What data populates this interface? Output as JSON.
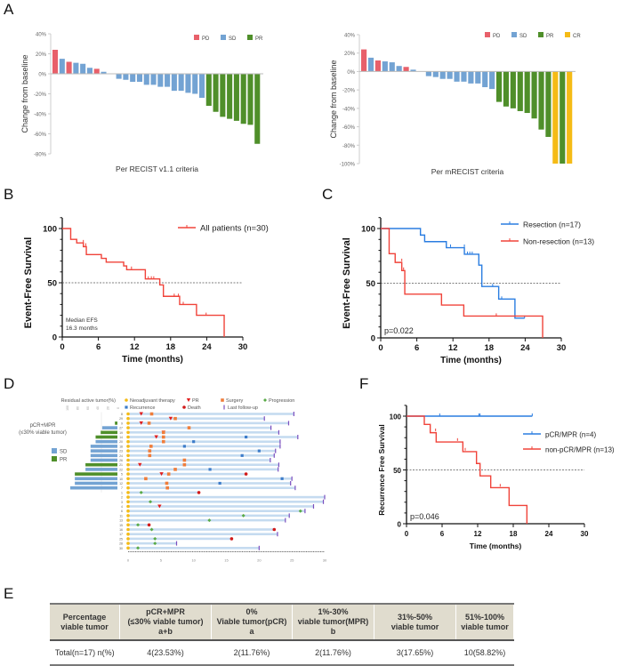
{
  "panels": {
    "A": "A",
    "B": "B",
    "C": "C",
    "D": "D",
    "E": "E",
    "F": "F"
  },
  "colors": {
    "PD": "#e8606a",
    "SD": "#73a3d3",
    "PR": "#4f8f2a",
    "CR": "#f5bb16",
    "km_red": "#f0433a",
    "km_blue": "#2a7de1",
    "neo": "#f5bb16",
    "surgery": "#ef7d3b",
    "progression": "#5aab48",
    "recurrence": "#3d7cc9",
    "death": "#d11a1a",
    "followup": "#7b4fbf",
    "pr_marker": "#e11d1d",
    "swim": "#c5dbf0"
  },
  "chart_data": [
    {
      "id": "A-left",
      "type": "bar",
      "title": "",
      "xlabel": "Per RECIST v1.1 criteria",
      "ylabel": "Change from baseline",
      "ylim": [
        -80,
        40
      ],
      "yticks": [
        "40%",
        "20%",
        "0%",
        "-20%",
        "-40%",
        "-60%",
        "-80%"
      ],
      "ytick_values": [
        40,
        20,
        0,
        -20,
        -40,
        -60,
        -80
      ],
      "legend": [
        "PD",
        "SD",
        "PR"
      ],
      "legend_position": "top-right",
      "values": [
        24,
        15,
        12,
        11,
        10,
        6,
        5,
        2,
        -5,
        -6,
        -8,
        -8,
        -11,
        -11,
        -13,
        -13,
        -17,
        -17,
        -19,
        -20,
        -24,
        -32,
        -38,
        -43,
        -45,
        -47,
        -50,
        -51,
        -70
      ],
      "categories_class": [
        "PD",
        "SD",
        "PD",
        "SD",
        "SD",
        "SD",
        "PD",
        "SD",
        "SD",
        "SD",
        "SD",
        "SD",
        "SD",
        "SD",
        "SD",
        "SD",
        "SD",
        "SD",
        "SD",
        "SD",
        "SD",
        "PR",
        "PR",
        "PR",
        "PR",
        "PR",
        "PR",
        "PR",
        "PR"
      ]
    },
    {
      "id": "A-right",
      "type": "bar",
      "title": "",
      "xlabel": "Per mRECIST criteria",
      "ylabel": "Change from baseline",
      "ylim": [
        -100,
        40
      ],
      "yticks": [
        "40%",
        "20%",
        "0%",
        "-20%",
        "-40%",
        "-60%",
        "-80%",
        "-100%"
      ],
      "ytick_values": [
        40,
        20,
        0,
        -20,
        -40,
        -60,
        -80,
        -100
      ],
      "legend": [
        "PD",
        "SD",
        "PR",
        "CR"
      ],
      "legend_position": "top-right",
      "values": [
        24,
        15,
        12,
        11,
        10,
        6,
        5,
        2,
        -5,
        -6,
        -8,
        -8,
        -11,
        -11,
        -13,
        -13,
        -17,
        -19,
        -33,
        -38,
        -40,
        -43,
        -45,
        -51,
        -63,
        -71,
        -100,
        -100,
        -100
      ],
      "categories_class": [
        "PD",
        "SD",
        "PD",
        "SD",
        "SD",
        "SD",
        "PD",
        "SD",
        "SD",
        "SD",
        "SD",
        "SD",
        "SD",
        "SD",
        "SD",
        "SD",
        "SD",
        "SD",
        "PR",
        "PR",
        "PR",
        "PR",
        "PR",
        "PR",
        "PR",
        "PR",
        "CR",
        "PR",
        "CR"
      ]
    },
    {
      "id": "B",
      "type": "line",
      "xlabel": "Time (months)",
      "ylabel": "Event-Free Survival",
      "xlim": [
        0,
        30
      ],
      "ylim": [
        0,
        100
      ],
      "xticks": [
        0,
        6,
        12,
        18,
        24,
        30
      ],
      "yticks": [
        0,
        50,
        100
      ],
      "annotation": "Median EFS\n16.3 months",
      "annotation_lines": [
        "Median EFS",
        "16.3 months"
      ],
      "reference_line": 50,
      "series": [
        {
          "name": "All patients (n=30)",
          "color": "#f0433a",
          "steps": [
            [
              0,
              100
            ],
            [
              1.4,
              100
            ],
            [
              1.4,
              90
            ],
            [
              2.4,
              90
            ],
            [
              2.4,
              86.7
            ],
            [
              3.5,
              86.7
            ],
            [
              3.5,
              83.3
            ],
            [
              4,
              83.3
            ],
            [
              4,
              76
            ],
            [
              6.5,
              76
            ],
            [
              6.5,
              72.5
            ],
            [
              7.3,
              72.5
            ],
            [
              7.3,
              69
            ],
            [
              10.2,
              69
            ],
            [
              10.2,
              65.5
            ],
            [
              10.7,
              65.5
            ],
            [
              10.7,
              62
            ],
            [
              13.8,
              62
            ],
            [
              13.8,
              53.5
            ],
            [
              16.2,
              53.5
            ],
            [
              16.2,
              48
            ],
            [
              16.8,
              48
            ],
            [
              16.8,
              37.5
            ],
            [
              19.5,
              37.5
            ],
            [
              19.5,
              30
            ],
            [
              22.3,
              30
            ],
            [
              22.3,
              20
            ],
            [
              26.9,
              20
            ],
            [
              26.9,
              0
            ]
          ],
          "censors": [
            [
              3.5,
              87
            ],
            [
              3.9,
              84
            ],
            [
              11.5,
              62.5
            ],
            [
              14.3,
              53.5
            ],
            [
              14.8,
              53.5
            ],
            [
              15.2,
              53.5
            ],
            [
              18.6,
              37.5
            ],
            [
              19.3,
              37.5
            ],
            [
              20.1,
              30
            ],
            [
              23.9,
              20
            ]
          ]
        }
      ]
    },
    {
      "id": "C",
      "type": "line",
      "xlabel": "Time (months)",
      "ylabel": "Event-Free Survival",
      "xlim": [
        0,
        30
      ],
      "ylim": [
        0,
        100
      ],
      "xticks": [
        0,
        6,
        12,
        18,
        24,
        30
      ],
      "yticks": [
        0,
        50,
        100
      ],
      "annotation": "p=0.022",
      "reference_line": 50,
      "series": [
        {
          "name": "Resection (n=17)",
          "color": "#2a7de1",
          "steps": [
            [
              0,
              100
            ],
            [
              6.6,
              100
            ],
            [
              6.6,
              94
            ],
            [
              7.3,
              94
            ],
            [
              7.3,
              88
            ],
            [
              10.9,
              88
            ],
            [
              10.9,
              82.5
            ],
            [
              13.9,
              82.5
            ],
            [
              13.9,
              76.5
            ],
            [
              16.3,
              76.5
            ],
            [
              16.3,
              66.5
            ],
            [
              16.8,
              66.5
            ],
            [
              16.8,
              47
            ],
            [
              19.6,
              47
            ],
            [
              19.6,
              35.5
            ],
            [
              22.3,
              35.5
            ],
            [
              22.3,
              18
            ],
            [
              23.9,
              18
            ]
          ],
          "censors": [
            [
              11.6,
              83
            ],
            [
              13.9,
              83
            ],
            [
              14.4,
              76.5
            ],
            [
              14.8,
              76.5
            ],
            [
              15.2,
              76.5
            ],
            [
              18.6,
              47
            ],
            [
              20.1,
              35.5
            ],
            [
              23.9,
              18
            ]
          ]
        },
        {
          "name": "Non-resection (n=13)",
          "color": "#f0433a",
          "steps": [
            [
              0,
              100
            ],
            [
              1.4,
              100
            ],
            [
              1.4,
              77
            ],
            [
              2.4,
              77
            ],
            [
              2.4,
              69
            ],
            [
              3.5,
              69
            ],
            [
              3.5,
              61.5
            ],
            [
              4,
              61.5
            ],
            [
              4,
              40
            ],
            [
              10.1,
              40
            ],
            [
              10.1,
              30
            ],
            [
              13.8,
              30
            ],
            [
              13.8,
              20
            ],
            [
              26.9,
              20
            ],
            [
              26.9,
              0
            ]
          ],
          "censors": [
            [
              3.5,
              70
            ],
            [
              3.8,
              62
            ],
            [
              19.2,
              20
            ]
          ]
        }
      ]
    },
    {
      "id": "D",
      "type": "swimmer",
      "xlim": [
        0,
        30
      ],
      "xticks": [
        0,
        5,
        10,
        15,
        20,
        25,
        30
      ],
      "left_title": "Residual active tumor(%)",
      "left_ticks": [
        "100",
        "80",
        "60",
        "40",
        "20",
        "0"
      ],
      "left_group_label": [
        "pCR+MPR",
        "(≤30% viable tumor)"
      ],
      "left_legend": [
        "SD",
        "PR"
      ],
      "legend": [
        "Neoadjuvant therapy",
        "PR",
        "Surgery",
        "Progression",
        "Recurrence",
        "Death",
        "Last follow-up"
      ],
      "patients": [
        {
          "id": "8",
          "residual": null,
          "cls": null,
          "end": 25.3,
          "pr": 2.0,
          "surgery": 3.6
        },
        {
          "id": "29",
          "residual": null,
          "cls": null,
          "end": 20.8,
          "pr": 6.5,
          "surgery": 7.2
        },
        {
          "id": "9",
          "residual": 5,
          "cls": "PR",
          "end": 24.5,
          "pr": 2.0,
          "surgery": 3.2
        },
        {
          "id": "27",
          "residual": 30,
          "cls": "SD",
          "end": 21.8,
          "surgery": 9.3
        },
        {
          "id": "19",
          "residual": 33,
          "cls": "PR",
          "end": 23.0,
          "pr": 5.4,
          "surgery": 5.4
        },
        {
          "id": "14",
          "residual": 43,
          "cls": "PR",
          "end": 25.9,
          "pr": 4.3,
          "surgery": 5.4,
          "recurrence": 18.0
        },
        {
          "id": "20",
          "residual": 43,
          "cls": "SD",
          "end": 23.2,
          "surgery": 5.4,
          "recurrence": 10.0
        },
        {
          "id": "18",
          "residual": 53,
          "cls": "SD",
          "end": 23.2,
          "surgery": 3.5,
          "recurrence": 8.6
        },
        {
          "id": "23",
          "residual": 53,
          "cls": "SD",
          "end": 22.5,
          "surgery": 3.3,
          "recurrence": 20.0
        },
        {
          "id": "24",
          "residual": 53,
          "cls": "SD",
          "end": 22.3,
          "surgery": 3.3,
          "recurrence": 17.4
        },
        {
          "id": "26",
          "residual": 53,
          "cls": "SD",
          "end": 21.7,
          "surgery": 8.6
        },
        {
          "id": "21",
          "residual": 63,
          "cls": "PR",
          "end": 23.0,
          "pr": 1.8,
          "surgery": 8.6
        },
        {
          "id": "22",
          "residual": 63,
          "cls": "SD",
          "end": 22.9,
          "surgery": 7.2,
          "recurrence": 12.5
        },
        {
          "id": "5",
          "residual": 84,
          "cls": "PR",
          "end": null,
          "pr": 5.1,
          "surgery": 6.2,
          "death": 18.0
        },
        {
          "id": "10",
          "residual": 84,
          "cls": "SD",
          "end": 25.0,
          "surgery": 2.7,
          "recurrence": 23.5
        },
        {
          "id": "12",
          "residual": 84,
          "cls": "SD",
          "end": 24.8,
          "surgery": 5.9,
          "recurrence": 14.0
        },
        {
          "id": "7",
          "residual": 93,
          "cls": "SD",
          "end": 25.5,
          "surgery": 6.0
        },
        {
          "id": "1",
          "residual": null,
          "cls": null,
          "end": null,
          "progression": 2.0,
          "death": 10.8
        },
        {
          "id": "2",
          "residual": null,
          "cls": null,
          "end": 30.0
        },
        {
          "id": "3",
          "residual": null,
          "cls": null,
          "end": 29.8,
          "progression": 3.4
        },
        {
          "id": "4",
          "residual": null,
          "cls": null,
          "end": 28.3,
          "pr": 4.8
        },
        {
          "id": "6",
          "residual": null,
          "cls": null,
          "end": 27.0,
          "progression": 26.3
        },
        {
          "id": "11",
          "residual": null,
          "cls": null,
          "end": 24.6,
          "progression": 17.6
        },
        {
          "id": "13",
          "residual": null,
          "cls": null,
          "end": 24.0,
          "progression": 12.4
        },
        {
          "id": "15",
          "residual": null,
          "cls": null,
          "end": null,
          "progression": 1.5,
          "death": 3.2
        },
        {
          "id": "16",
          "residual": null,
          "cls": null,
          "end": null,
          "progression": 3.6,
          "death": 22.3
        },
        {
          "id": "17",
          "residual": null,
          "cls": null,
          "end": 22.8
        },
        {
          "id": "25",
          "residual": null,
          "cls": null,
          "end": null,
          "progression": 4.1,
          "death": 15.8
        },
        {
          "id": "28",
          "residual": null,
          "cls": null,
          "end": 7.4,
          "progression": 4.1
        },
        {
          "id": "30",
          "residual": null,
          "cls": null,
          "end": 20.0,
          "progression": 1.5
        }
      ]
    },
    {
      "id": "F",
      "type": "line",
      "xlabel": "Time (months)",
      "ylabel": "Recurrence Free Survival",
      "xlim": [
        0,
        30
      ],
      "ylim": [
        0,
        100
      ],
      "xticks": [
        0,
        6,
        12,
        18,
        24,
        30
      ],
      "yticks": [
        0,
        50,
        100
      ],
      "annotation": "p=0.046",
      "reference_line": 50,
      "series": [
        {
          "name": "pCR/MPR (n=4)",
          "color": "#2a7de1",
          "steps": [
            [
              0,
              100
            ],
            [
              21.2,
              100
            ]
          ],
          "censors": [
            [
              5.6,
              100
            ],
            [
              12.2,
              100
            ],
            [
              12.4,
              100
            ],
            [
              21.2,
              100
            ]
          ]
        },
        {
          "name": "non-pCR/MPR (n=13)",
          "color": "#f0433a",
          "steps": [
            [
              0,
              100
            ],
            [
              3,
              100
            ],
            [
              3,
              92.3
            ],
            [
              4,
              92.3
            ],
            [
              4,
              84.6
            ],
            [
              5,
              84.6
            ],
            [
              5,
              76
            ],
            [
              9.5,
              76
            ],
            [
              9.5,
              67
            ],
            [
              11.8,
              67
            ],
            [
              11.8,
              56
            ],
            [
              12.4,
              56
            ],
            [
              12.4,
              44.5
            ],
            [
              14.2,
              44.5
            ],
            [
              14.2,
              33.5
            ],
            [
              17.3,
              33.5
            ],
            [
              17.3,
              17
            ],
            [
              20.3,
              17
            ],
            [
              20.3,
              0
            ]
          ],
          "censors": [
            [
              4.9,
              86
            ],
            [
              8.6,
              77
            ],
            [
              9.9,
              68
            ],
            [
              15.8,
              34.5
            ]
          ]
        }
      ]
    }
  ],
  "table": {
    "headers": [
      [
        "Percentage",
        "viable tumor"
      ],
      [
        "pCR+MPR",
        "(≤30% viable tumor)",
        "a+b"
      ],
      [
        "0%",
        "Viable tumor(pCR)",
        "a"
      ],
      [
        "1%-30%",
        "viable tumor(MPR)",
        "b"
      ],
      [
        "31%-50%",
        "viable tumor"
      ],
      [
        "51%-100%",
        "viable tumor"
      ]
    ],
    "rows": [
      [
        "Total(n=17) n(%)",
        "4(23.53%)",
        "2(11.76%)",
        "2(11.76%)",
        "3(17.65%)",
        "10(58.82%)"
      ]
    ]
  }
}
